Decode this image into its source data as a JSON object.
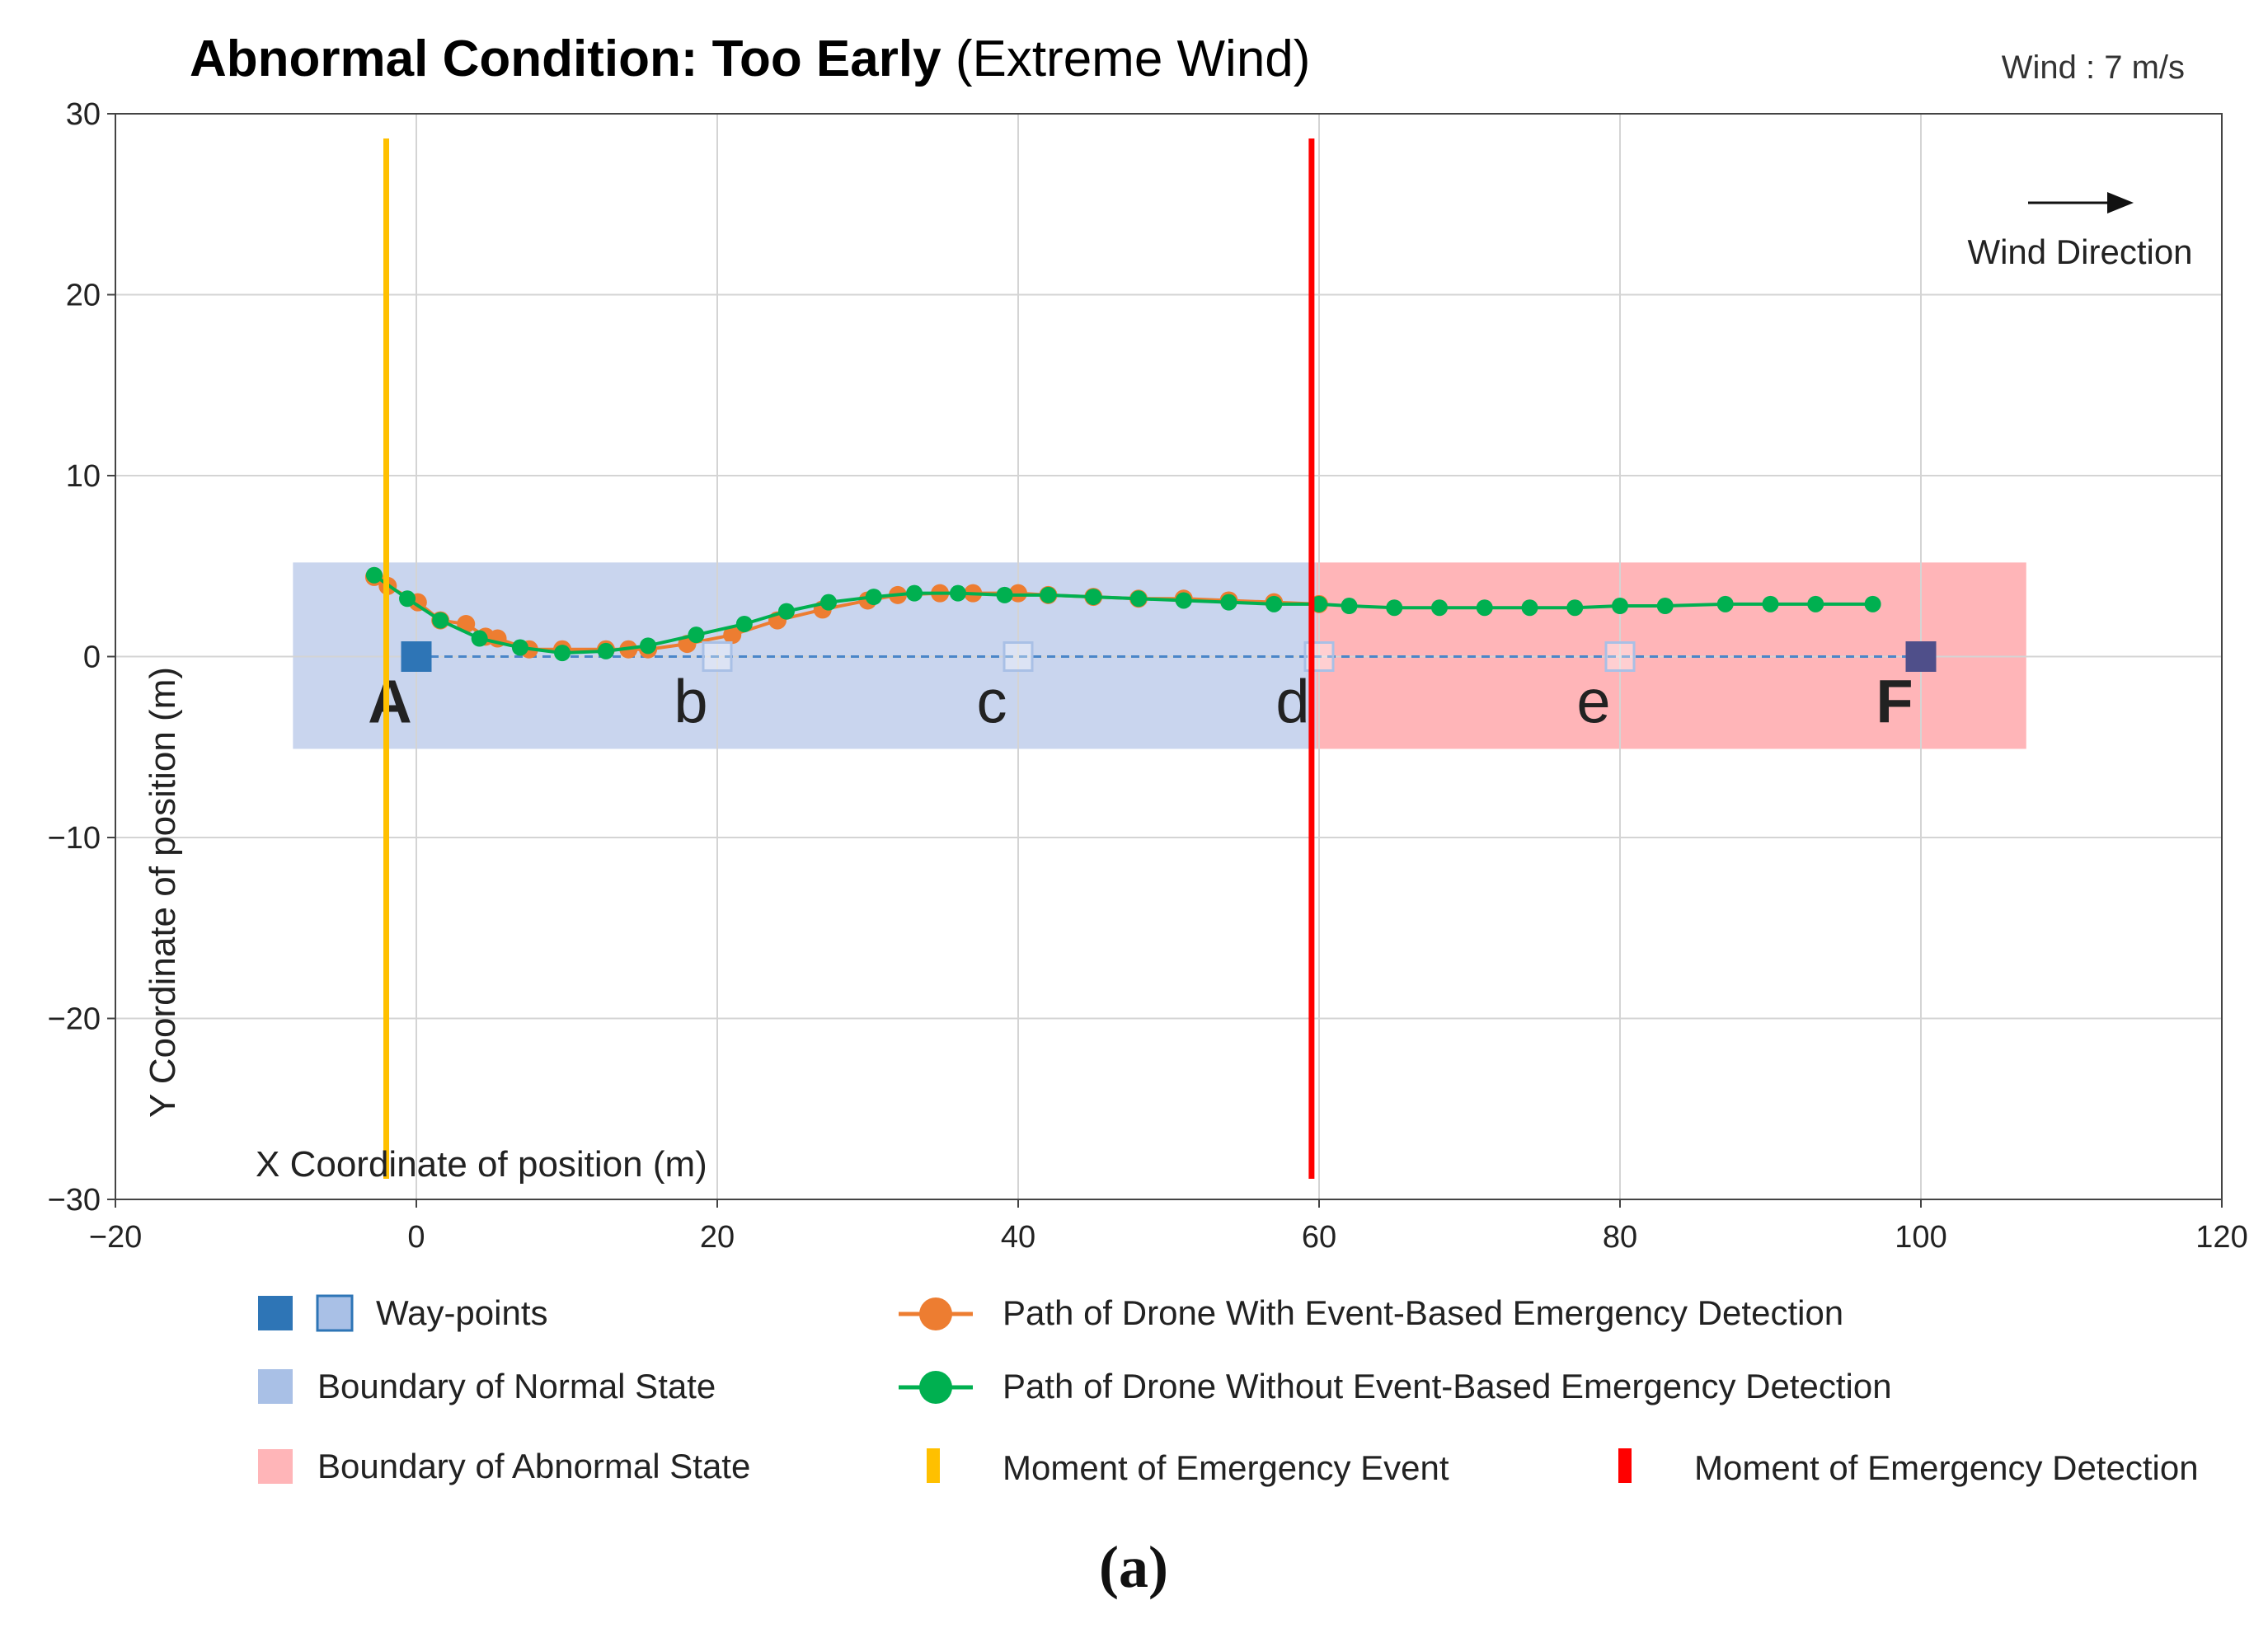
{
  "chart_data": {
    "type": "line",
    "title_bold": "Abnormal Condition: Too Early",
    "title_normal": "(Extreme Wind)",
    "wind_label": "Wind : 7 m/s",
    "wind_direction_label": "Wind Direction",
    "xlabel": "X Coordinate of position (m)",
    "ylabel": "Y Coordinate of position (m)",
    "xlim": [
      -20,
      120
    ],
    "ylim": [
      -30,
      30
    ],
    "xticks": [
      -20,
      0,
      20,
      40,
      60,
      80,
      100,
      120
    ],
    "yticks": [
      -30,
      -20,
      -10,
      0,
      10,
      20,
      30
    ],
    "xtick_labels": [
      "−20",
      "0",
      "20",
      "40",
      "60",
      "80",
      "100",
      "120"
    ],
    "ytick_labels": [
      "−30",
      "−20",
      "−10",
      "0",
      "10",
      "20",
      "30"
    ],
    "grid": true,
    "normal_region": {
      "x": [
        -8.2,
        59.8
      ],
      "y": [
        -5.1,
        5.2
      ]
    },
    "abnormal_region": {
      "x": [
        59.8,
        107
      ],
      "y": [
        -5.1,
        5.2
      ]
    },
    "waypoints": [
      {
        "label": "A",
        "x": 0,
        "y": 0,
        "style": "filled",
        "bold": true
      },
      {
        "label": "b",
        "x": 20,
        "y": 0,
        "style": "hollow",
        "bold": false
      },
      {
        "label": "c",
        "x": 40,
        "y": 0,
        "style": "hollow",
        "bold": false
      },
      {
        "label": "d",
        "x": 60,
        "y": 0,
        "style": "hollow",
        "bold": false
      },
      {
        "label": "e",
        "x": 80,
        "y": 0,
        "style": "hollow",
        "bold": false
      },
      {
        "label": "F",
        "x": 100,
        "y": 0,
        "style": "filled-dark",
        "bold": true
      }
    ],
    "series": [
      {
        "name": "Path of Drone With Event-Based Emergency Detection",
        "color": "#ED7D31",
        "x": [
          -2.8,
          -1.9,
          0.1,
          1.6,
          3.3,
          4.6,
          5.4,
          7.5,
          9.7,
          12.6,
          14.1,
          15.4,
          18.0,
          21.0,
          24.0,
          27.0,
          30.0,
          32.0,
          34.8,
          37.0,
          40.0,
          42.0,
          45.0,
          48.0,
          51.0,
          54.0,
          57.0,
          60.0
        ],
        "y": [
          4.4,
          3.9,
          3.0,
          2.0,
          1.8,
          1.1,
          1.0,
          0.4,
          0.4,
          0.4,
          0.4,
          0.4,
          0.7,
          1.2,
          2.0,
          2.6,
          3.1,
          3.4,
          3.5,
          3.5,
          3.5,
          3.4,
          3.3,
          3.2,
          3.2,
          3.1,
          3.0,
          2.9
        ]
      },
      {
        "name": "Path of Drone Without Event-Based Emergency Detection",
        "color": "#00B050",
        "x": [
          -2.8,
          -0.6,
          1.6,
          4.2,
          6.9,
          9.7,
          12.6,
          15.4,
          18.6,
          21.8,
          24.6,
          27.4,
          30.4,
          33.1,
          36.0,
          39.1,
          42.0,
          45.0,
          48.0,
          51.0,
          54.0,
          57.0,
          60.0,
          62.0,
          65.0,
          68.0,
          71.0,
          74.0,
          77.0,
          80.0,
          83.0,
          87.0,
          90.0,
          93.0,
          96.8
        ],
        "y": [
          4.5,
          3.2,
          2.0,
          1.0,
          0.5,
          0.2,
          0.3,
          0.6,
          1.2,
          1.8,
          2.5,
          3.0,
          3.3,
          3.5,
          3.5,
          3.4,
          3.4,
          3.3,
          3.2,
          3.1,
          3.0,
          2.9,
          2.9,
          2.8,
          2.7,
          2.7,
          2.7,
          2.7,
          2.7,
          2.8,
          2.8,
          2.9,
          2.9,
          2.9,
          2.9
        ]
      }
    ],
    "events": {
      "emergency_event_x": -2.0,
      "emergency_detection_x": 59.5,
      "emergency_event_color": "#FFC000",
      "emergency_detection_color": "#FF0000"
    },
    "colors": {
      "normal_fill": "#C9D5EE",
      "abnormal_fill": "#FFB5B8",
      "waypoint_filled": "#2E75B6",
      "waypoint_hollow": "#A9C0E6",
      "waypoint_dark": "#4F4F8A",
      "path_line": "#4A86C8"
    },
    "legend": [
      {
        "label": "Way-points",
        "marker": "waypoints"
      },
      {
        "label": "Boundary of Normal State",
        "marker": "normal"
      },
      {
        "label": "Boundary of Abnormal State",
        "marker": "abnormal"
      },
      {
        "label": "Path of Drone With Event-Based Emergency Detection",
        "marker": "orange-dot"
      },
      {
        "label": "Path of Drone Without Event-Based Emergency Detection",
        "marker": "green-dot"
      },
      {
        "label": "Moment of Emergency Event",
        "marker": "yellow-bar"
      },
      {
        "label": "Moment of Emergency Detection",
        "marker": "red-bar"
      }
    ],
    "caption": "(a)"
  }
}
